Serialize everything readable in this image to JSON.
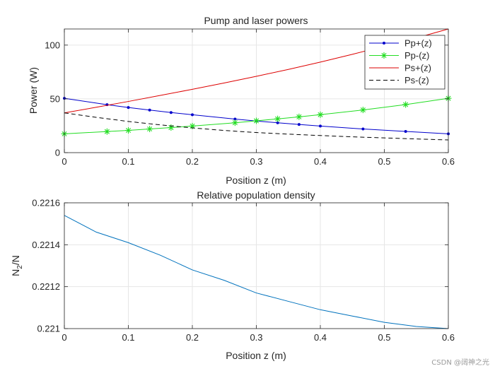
{
  "watermark": "CSDN @阔神之光",
  "chart_data": [
    {
      "type": "line",
      "title": "Pump and laser powers",
      "xlabel": "Position z (m)",
      "ylabel": "Power (W)",
      "xlim": [
        0,
        0.6
      ],
      "ylim": [
        0,
        115
      ],
      "xticks": [
        0,
        0.1,
        0.2,
        0.3,
        0.4,
        0.5,
        0.6
      ],
      "xtick_labels": [
        "0",
        "0.1",
        "0.2",
        "0.3",
        "0.4",
        "0.5",
        "0.6"
      ],
      "yticks": [
        0,
        50,
        100
      ],
      "ytick_labels": [
        "0",
        "50",
        "100"
      ],
      "grid": true,
      "legend_position": "top-right",
      "series": [
        {
          "name": "Pp+(z)",
          "color": "#0000cc",
          "line": "solid",
          "marker": "dot",
          "x": [
            0,
            0.0667,
            0.1,
            0.1333,
            0.1667,
            0.2,
            0.2667,
            0.3,
            0.3333,
            0.3667,
            0.4,
            0.4667,
            0.5333,
            0.6
          ],
          "y": [
            50.5,
            44.6,
            42.0,
            39.6,
            37.3,
            35.2,
            31.2,
            29.4,
            27.8,
            26.2,
            24.7,
            22.0,
            19.7,
            17.5
          ]
        },
        {
          "name": "Pp-(z)",
          "color": "#22dd22",
          "line": "solid",
          "marker": "star",
          "x": [
            0,
            0.0667,
            0.1,
            0.1333,
            0.1667,
            0.2,
            0.2667,
            0.3,
            0.3333,
            0.3667,
            0.4,
            0.4667,
            0.5333,
            0.6
          ],
          "y": [
            17.5,
            19.6,
            20.7,
            22.0,
            23.3,
            24.7,
            27.8,
            29.6,
            31.4,
            33.3,
            35.3,
            39.7,
            44.7,
            50.5
          ]
        },
        {
          "name": "Ps+(z)",
          "color": "#dd0000",
          "line": "solid",
          "marker": "none",
          "x": [
            0,
            0.05,
            0.1,
            0.15,
            0.2,
            0.25,
            0.3,
            0.35,
            0.4,
            0.45,
            0.5,
            0.55,
            0.6
          ],
          "y": [
            37.0,
            42.2,
            47.6,
            53.2,
            58.9,
            64.8,
            71.0,
            77.4,
            84.2,
            91.4,
            99.0,
            106.6,
            115.0
          ]
        },
        {
          "name": "Ps-(z)",
          "color": "#000000",
          "line": "dashed",
          "marker": "none",
          "x": [
            0,
            0.05,
            0.1,
            0.15,
            0.2,
            0.25,
            0.3,
            0.35,
            0.4,
            0.45,
            0.5,
            0.55,
            0.6
          ],
          "y": [
            37.0,
            32.8,
            29.0,
            25.8,
            23.0,
            20.6,
            18.7,
            17.2,
            15.9,
            14.7,
            13.7,
            12.7,
            11.8
          ]
        }
      ]
    },
    {
      "type": "line",
      "title": "Relative population density",
      "xlabel": "Position z (m)",
      "ylabel": "N2/N",
      "ylabel_main": "N",
      "ylabel_sub": "2",
      "ylabel_tail": "/N",
      "xlim": [
        0,
        0.6
      ],
      "ylim": [
        0.221,
        0.2216
      ],
      "xticks": [
        0,
        0.1,
        0.2,
        0.3,
        0.4,
        0.5,
        0.6
      ],
      "xtick_labels": [
        "0",
        "0.1",
        "0.2",
        "0.3",
        "0.4",
        "0.5",
        "0.6"
      ],
      "yticks": [
        0.221,
        0.2212,
        0.2214,
        0.2216
      ],
      "ytick_labels": [
        "0.221",
        "0.2212",
        "0.2214",
        "0.2216"
      ],
      "grid": true,
      "series": [
        {
          "name": "N2/N",
          "color": "#0072bd",
          "line": "solid",
          "marker": "none",
          "x": [
            0,
            0.05,
            0.1,
            0.15,
            0.2,
            0.25,
            0.3,
            0.35,
            0.4,
            0.45,
            0.5,
            0.55,
            0.6
          ],
          "y": [
            0.22154,
            0.22146,
            0.22141,
            0.22135,
            0.22128,
            0.22123,
            0.22117,
            0.22113,
            0.22109,
            0.22106,
            0.22103,
            0.22101,
            0.221
          ]
        }
      ]
    }
  ]
}
